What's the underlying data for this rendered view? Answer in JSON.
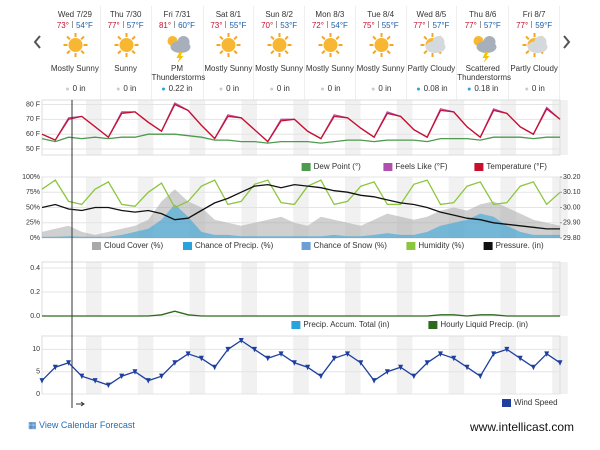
{
  "days": [
    {
      "date": "Wed 7/29",
      "hi": "73°",
      "lo": "54°F",
      "condition": "Mostly Sunny",
      "precip": "0 in"
    },
    {
      "date": "Thu 7/30",
      "hi": "77°",
      "lo": "57°F",
      "condition": "Sunny",
      "precip": "0 in"
    },
    {
      "date": "Fri 7/31",
      "hi": "81°",
      "lo": "60°F",
      "condition": "PM Thunderstorms",
      "precip": "0.22 in"
    },
    {
      "date": "Sat 8/1",
      "hi": "73°",
      "lo": "55°F",
      "condition": "Mostly Sunny",
      "precip": "0 in"
    },
    {
      "date": "Sun 8/2",
      "hi": "70°",
      "lo": "53°F",
      "condition": "Mostly Sunny",
      "precip": "0 in"
    },
    {
      "date": "Mon 8/3",
      "hi": "72°",
      "lo": "54°F",
      "condition": "Mostly Sunny",
      "precip": "0 in"
    },
    {
      "date": "Tue 8/4",
      "hi": "75°",
      "lo": "55°F",
      "condition": "Mostly Sunny",
      "precip": "0 in"
    },
    {
      "date": "Wed 8/5",
      "hi": "77°",
      "lo": "57°F",
      "condition": "Partly Cloudy",
      "precip": "0.08 in"
    },
    {
      "date": "Thu 8/6",
      "hi": "77°",
      "lo": "57°F",
      "condition": "Scattered Thunderstorms",
      "precip": "0.18 in"
    },
    {
      "date": "Fri 8/7",
      "hi": "77°",
      "lo": "59°F",
      "condition": "Partly Cloudy",
      "precip": "0 in"
    }
  ],
  "chart_data": [
    {
      "type": "line",
      "ylim": [
        46,
        83
      ],
      "yticks": [
        {
          "value": 50,
          "label": "50 F"
        },
        {
          "value": 60,
          "label": "60 F"
        },
        {
          "value": 70,
          "label": "70 F"
        },
        {
          "value": 80,
          "label": "80 F"
        }
      ],
      "series": [
        {
          "name": "Dew Point (°)",
          "color": "#4e9a4e",
          "values": [
            57,
            55,
            58,
            57,
            58,
            57,
            58,
            58,
            60,
            60,
            60,
            59,
            58,
            56,
            56,
            55,
            55,
            54,
            55,
            55,
            55,
            54,
            55,
            56,
            56,
            55,
            56,
            56,
            56,
            55,
            57,
            57,
            57,
            56,
            58,
            58,
            58,
            57,
            58,
            58
          ]
        },
        {
          "name": "Feels Like (°F)",
          "color": "#b04fb0",
          "values": [
            60,
            56,
            71,
            72,
            65,
            58,
            75,
            75,
            68,
            62,
            81,
            76,
            66,
            57,
            73,
            71,
            63,
            55,
            70,
            70,
            62,
            57,
            73,
            71,
            64,
            58,
            75,
            72,
            63,
            58,
            77,
            75,
            65,
            58,
            77,
            74,
            65,
            60,
            78,
            70
          ]
        },
        {
          "name": "Temperature (°F)",
          "color": "#c8102e",
          "values": [
            60,
            56,
            70,
            72,
            65,
            58,
            74,
            75,
            68,
            62,
            80,
            76,
            66,
            57,
            72,
            71,
            63,
            55,
            69,
            70,
            62,
            57,
            72,
            71,
            64,
            58,
            74,
            72,
            63,
            58,
            76,
            75,
            65,
            58,
            76,
            74,
            65,
            60,
            77,
            70
          ]
        }
      ]
    },
    {
      "type": "line",
      "ylim": [
        0,
        100
      ],
      "yticks": [
        {
          "value": 0,
          "label": "0%"
        },
        {
          "value": 25,
          "label": "25%"
        },
        {
          "value": 50,
          "label": "50%"
        },
        {
          "value": 75,
          "label": "75%"
        },
        {
          "value": 100,
          "label": "100%"
        }
      ],
      "y2lim": [
        29.8,
        30.2
      ],
      "y2ticks": [
        {
          "value": 29.8,
          "label": "29.80"
        },
        {
          "value": 29.9,
          "label": "29.90"
        },
        {
          "value": 30,
          "label": "30.00"
        },
        {
          "value": 30.1,
          "label": "30.10"
        },
        {
          "value": 30.2,
          "label": "30.20"
        }
      ],
      "series": [
        {
          "name": "Cloud Cover (%)",
          "color": "#a9a9a9",
          "style": "area",
          "values": [
            10,
            15,
            20,
            10,
            5,
            10,
            15,
            20,
            30,
            60,
            80,
            60,
            50,
            30,
            25,
            20,
            25,
            30,
            35,
            25,
            20,
            35,
            30,
            25,
            20,
            30,
            40,
            35,
            30,
            35,
            45,
            50,
            45,
            55,
            60,
            50,
            40,
            30,
            25,
            20
          ]
        },
        {
          "name": "Chance of Precip. (%)",
          "color": "#29a3dd",
          "style": "area",
          "values": [
            2,
            2,
            3,
            2,
            2,
            2,
            5,
            10,
            15,
            30,
            55,
            35,
            10,
            5,
            5,
            3,
            3,
            3,
            3,
            3,
            3,
            3,
            5,
            3,
            3,
            5,
            8,
            5,
            5,
            10,
            20,
            25,
            30,
            40,
            35,
            20,
            10,
            5,
            5,
            5
          ]
        },
        {
          "name": "Chance of Snow (%)",
          "color": "#6a9fd8",
          "style": "area"
        },
        {
          "name": "Humidity (%)",
          "color": "#8cc63f",
          "values": [
            80,
            95,
            60,
            55,
            80,
            92,
            55,
            52,
            75,
            90,
            50,
            60,
            85,
            95,
            55,
            60,
            88,
            95,
            58,
            55,
            85,
            95,
            55,
            60,
            85,
            92,
            55,
            55,
            88,
            95,
            55,
            58,
            85,
            92,
            55,
            58,
            85,
            92,
            55,
            75
          ]
        },
        {
          "name": "Pressure. (in)",
          "color": "#111111",
          "axis": "y2",
          "values": [
            30.0,
            30.02,
            29.99,
            29.98,
            30.0,
            30.0,
            29.98,
            29.97,
            29.98,
            29.96,
            29.92,
            29.93,
            29.98,
            30.03,
            30.06,
            30.1,
            30.14,
            30.15,
            30.13,
            30.15,
            30.14,
            30.13,
            30.11,
            30.1,
            30.08,
            30.07,
            30.05,
            30.03,
            30.02,
            30.0,
            29.97,
            29.95,
            29.93,
            29.92,
            29.9,
            29.89,
            29.88,
            29.87,
            29.86,
            29.86
          ]
        }
      ]
    },
    {
      "type": "line",
      "ylim": [
        0,
        0.45
      ],
      "yticks": [
        {
          "value": 0,
          "label": "0.0"
        },
        {
          "value": 0.2,
          "label": "0.2"
        },
        {
          "value": 0.4,
          "label": "0.4"
        }
      ],
      "series": [
        {
          "name": "Precip. Accum. Total (in)",
          "color": "#29a3dd"
        },
        {
          "name": "Hourly Liquid Precip. (in)",
          "color": "#2d6a1f",
          "values": [
            0,
            0,
            0,
            0,
            0,
            0,
            0,
            0,
            0,
            0.01,
            0.04,
            0.01,
            0,
            0,
            0,
            0,
            0,
            0,
            0,
            0,
            0,
            0,
            0,
            0,
            0,
            0,
            0,
            0,
            0,
            0,
            0.01,
            0.01,
            0,
            0.01,
            0.01,
            0,
            0,
            0,
            0,
            0
          ]
        }
      ]
    },
    {
      "type": "line",
      "ylim": [
        0,
        13
      ],
      "yticks": [
        0,
        5,
        10
      ],
      "series": [
        {
          "name": "Wind Speed",
          "color": "#1f3f9e",
          "values": [
            3,
            6,
            7,
            4,
            3,
            2,
            4,
            5,
            3,
            4,
            7,
            9,
            8,
            6,
            10,
            12,
            10,
            8,
            9,
            7,
            6,
            4,
            8,
            9,
            7,
            3,
            5,
            6,
            4,
            7,
            9,
            8,
            6,
            4,
            9,
            10,
            8,
            6,
            9,
            7
          ]
        }
      ]
    }
  ],
  "footer": {
    "link": "View Calendar Forecast",
    "brand": "www.intellicast.com"
  }
}
